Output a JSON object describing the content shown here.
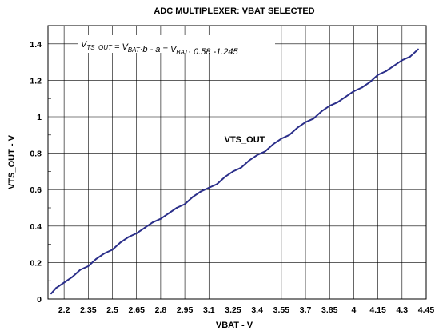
{
  "chart_data": {
    "type": "line",
    "title": "ADC MULTIPLEXER: VBAT SELECTED",
    "xlabel": "VBAT - V",
    "ylabel": "VTS_OUT - V",
    "xlim": [
      2.1,
      4.45
    ],
    "ylim": [
      0,
      1.5
    ],
    "xticks": [
      "2.2",
      "2.35",
      "2.5",
      "2.65",
      "2.8",
      "2.95",
      "3.1",
      "3.25",
      "3.4",
      "3.55",
      "3.7",
      "3.85",
      "4",
      "4.15",
      "4.3",
      "4.45"
    ],
    "yticks": [
      "0",
      "0.2",
      "0.4",
      "0.6",
      "0.8",
      "1",
      "1.2",
      "1.4"
    ],
    "grid": true,
    "equation": {
      "parts": [
        {
          "t": "V",
          "sub": false
        },
        {
          "t": "TS_OUT",
          "sub": true
        },
        {
          "t": " = V",
          "sub": false
        },
        {
          "t": "BAT",
          "sub": true
        },
        {
          "t": "·b - a = V",
          "sub": false
        },
        {
          "t": "BAT",
          "sub": true
        },
        {
          "t": "· 0.58 -1.245",
          "sub": false
        }
      ]
    },
    "series": [
      {
        "name": "VTS_OUT",
        "color": "#2b2f8a",
        "x": [
          2.12,
          2.15,
          2.2,
          2.25,
          2.3,
          2.35,
          2.4,
          2.45,
          2.5,
          2.55,
          2.6,
          2.65,
          2.7,
          2.75,
          2.8,
          2.85,
          2.9,
          2.95,
          3.0,
          3.05,
          3.1,
          3.15,
          3.2,
          3.25,
          3.3,
          3.35,
          3.4,
          3.45,
          3.5,
          3.55,
          3.6,
          3.65,
          3.7,
          3.75,
          3.8,
          3.85,
          3.9,
          3.95,
          4.0,
          4.05,
          4.1,
          4.15,
          4.2,
          4.25,
          4.3,
          4.35,
          4.4
        ],
        "y": [
          0.03,
          0.06,
          0.09,
          0.12,
          0.16,
          0.18,
          0.22,
          0.25,
          0.27,
          0.31,
          0.34,
          0.36,
          0.39,
          0.42,
          0.44,
          0.47,
          0.5,
          0.52,
          0.56,
          0.59,
          0.61,
          0.63,
          0.67,
          0.7,
          0.72,
          0.76,
          0.79,
          0.81,
          0.85,
          0.88,
          0.9,
          0.94,
          0.97,
          0.99,
          1.03,
          1.06,
          1.08,
          1.11,
          1.14,
          1.16,
          1.19,
          1.23,
          1.25,
          1.28,
          1.31,
          1.33,
          1.37
        ]
      }
    ]
  }
}
